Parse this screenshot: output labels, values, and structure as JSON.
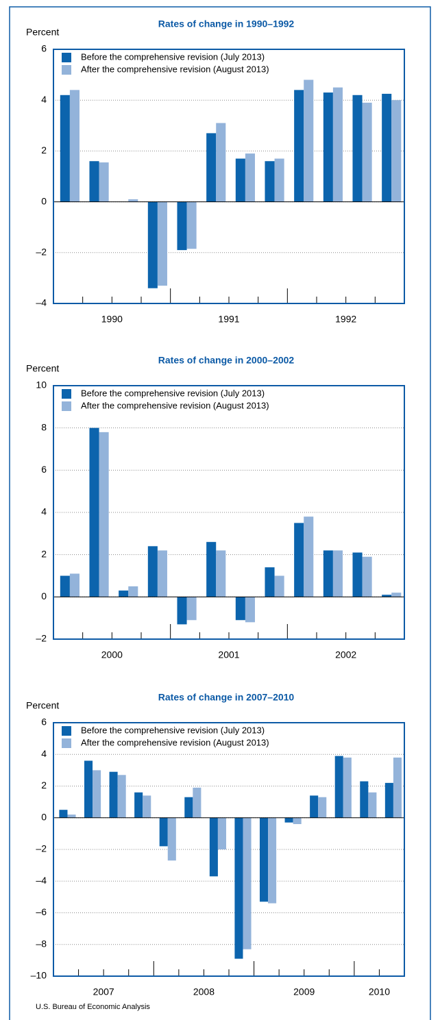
{
  "chart_data": [
    {
      "type": "bar",
      "title": "Rates of change in 1990–1992",
      "y_label": "Percent",
      "categories": [
        null,
        null,
        null,
        null,
        null,
        null,
        null,
        null,
        null,
        null,
        null,
        null
      ],
      "groups": [
        {
          "label": "1990",
          "count": 4
        },
        {
          "label": "1991",
          "count": 4
        },
        {
          "label": "1992",
          "count": 4
        }
      ],
      "series": [
        {
          "name": "Before the comprehensive revision (July 2013)",
          "color": "#0c64ad",
          "values": [
            4.2,
            1.6,
            0.0,
            -3.4,
            -1.9,
            2.7,
            1.7,
            1.6,
            4.4,
            4.3,
            4.2,
            4.25
          ]
        },
        {
          "name": "After the comprehensive revision (August 2013)",
          "color": "#93b3da",
          "values": [
            4.4,
            1.55,
            0.1,
            -3.3,
            -1.85,
            3.1,
            1.9,
            1.7,
            4.8,
            4.5,
            3.9,
            4.0
          ]
        }
      ],
      "ylim": [
        -4,
        6
      ],
      "yticks": [
        {
          "value": -4,
          "label": "–4"
        },
        {
          "value": -2,
          "label": "–2"
        },
        0,
        2,
        4,
        6
      ],
      "grid": true
    },
    {
      "type": "bar",
      "title": "Rates of change in 2000–2002",
      "y_label": "Percent",
      "categories": [
        null,
        null,
        null,
        null,
        null,
        null,
        null,
        null,
        null,
        null,
        null,
        null
      ],
      "groups": [
        {
          "label": "2000",
          "count": 4
        },
        {
          "label": "2001",
          "count": 4
        },
        {
          "label": "2002",
          "count": 4
        }
      ],
      "series": [
        {
          "name": "Before the comprehensive revision (July 2013)",
          "color": "#0c64ad",
          "values": [
            1.0,
            8.0,
            0.3,
            2.4,
            -1.3,
            2.6,
            -1.1,
            1.4,
            3.5,
            2.2,
            2.1,
            0.1
          ]
        },
        {
          "name": "After the comprehensive revision (August 2013)",
          "color": "#93b3da",
          "values": [
            1.1,
            7.8,
            0.5,
            2.2,
            -1.1,
            2.2,
            -1.2,
            1.0,
            3.8,
            2.2,
            1.9,
            0.2
          ]
        }
      ],
      "ylim": [
        -2,
        10
      ],
      "yticks": [
        {
          "value": -2,
          "label": "–2"
        },
        0,
        2,
        4,
        6,
        8,
        10
      ],
      "grid": true
    },
    {
      "type": "bar",
      "title": "Rates of change in 2007–2010",
      "y_label": "Percent",
      "categories": [
        null,
        null,
        null,
        null,
        null,
        null,
        null,
        null,
        null,
        null,
        null,
        null,
        null,
        null
      ],
      "groups": [
        {
          "label": "2007",
          "count": 4
        },
        {
          "label": "2008",
          "count": 4
        },
        {
          "label": "2009",
          "count": 4
        },
        {
          "label": "2010",
          "count": 2
        }
      ],
      "series": [
        {
          "name": "Before the comprehensive revision (July 2013)",
          "color": "#0c64ad",
          "values": [
            0.5,
            3.6,
            2.9,
            1.6,
            -1.8,
            1.3,
            -3.7,
            -8.9,
            -5.3,
            -0.3,
            1.4,
            3.9,
            2.3,
            2.2
          ]
        },
        {
          "name": "After the comprehensive revision (August 2013)",
          "color": "#93b3da",
          "values": [
            0.2,
            3.0,
            2.7,
            1.4,
            -2.7,
            1.9,
            -2.0,
            -8.3,
            -5.4,
            -0.4,
            1.3,
            3.8,
            1.6,
            3.8
          ]
        }
      ],
      "ylim": [
        -10,
        6
      ],
      "yticks": [
        {
          "value": -10,
          "label": "–10"
        },
        {
          "value": -8,
          "label": "–8"
        },
        {
          "value": -6,
          "label": "–6"
        },
        {
          "value": -4,
          "label": "–4"
        },
        {
          "value": -2,
          "label": "–2"
        },
        0,
        2,
        4,
        6
      ],
      "grid": true
    }
  ],
  "source": "U.S. Bureau of Economic Analysis"
}
